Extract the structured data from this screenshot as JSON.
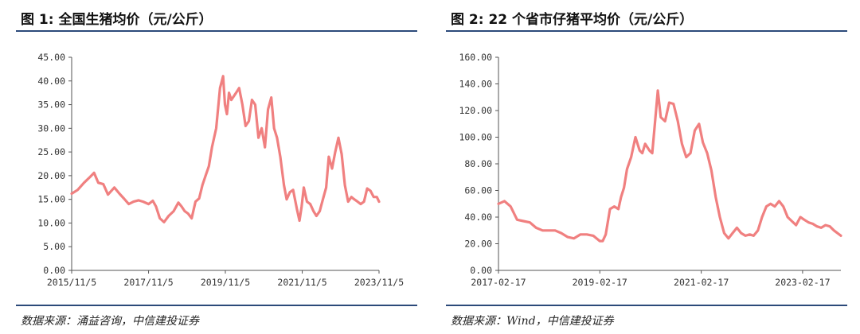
{
  "chart_data": [
    {
      "type": "line",
      "title": "图 1: 全国生猪均价（元/公斤）",
      "source": "数据来源：涌益咨询，中信建投证券",
      "color": "#f08080",
      "ylim": [
        0,
        45
      ],
      "yticks": [
        "45.00",
        "40.00",
        "35.00",
        "30.00",
        "25.00",
        "20.00",
        "15.00",
        "10.00",
        "5.00",
        "0.00"
      ],
      "ytick_values": [
        45,
        40,
        35,
        30,
        25,
        20,
        15,
        10,
        5,
        0
      ],
      "xlim": [
        "2015-11-05",
        "2023-11-05"
      ],
      "xticks": [
        "2015/11/5",
        "2017/11/5",
        "2019/11/5",
        "2021/11/5",
        "2023/11/5"
      ],
      "xtick_values": [
        "2015-11-05",
        "2017-11-05",
        "2019-11-05",
        "2021-11-05",
        "2023-11-05"
      ],
      "series": [
        {
          "x": [
            "2015-11-05",
            "2016-01-01",
            "2016-03-01",
            "2016-05-01",
            "2016-06-05",
            "2016-07-15",
            "2016-09-01",
            "2016-10-15",
            "2016-12-15",
            "2017-02-01",
            "2017-03-15",
            "2017-05-01",
            "2017-06-15",
            "2017-08-01",
            "2017-09-15",
            "2017-11-05",
            "2017-12-15",
            "2018-01-15",
            "2018-02-20",
            "2018-04-01",
            "2018-05-15",
            "2018-07-01",
            "2018-08-15",
            "2018-09-15",
            "2018-10-15",
            "2018-11-15",
            "2018-12-20",
            "2019-01-25",
            "2019-03-01",
            "2019-04-01",
            "2019-05-01",
            "2019-06-01",
            "2019-07-01",
            "2019-08-10",
            "2019-09-15",
            "2019-10-15",
            "2019-11-01",
            "2019-11-20",
            "2019-12-10",
            "2020-01-01",
            "2020-02-15",
            "2020-03-15",
            "2020-04-15",
            "2020-05-15",
            "2020-06-15",
            "2020-07-15",
            "2020-08-15",
            "2020-09-15",
            "2020-10-15",
            "2020-11-15",
            "2020-12-15",
            "2021-01-15",
            "2021-02-10",
            "2021-03-10",
            "2021-04-10",
            "2021-05-15",
            "2021-06-10",
            "2021-07-10",
            "2021-08-10",
            "2021-09-15",
            "2021-10-10",
            "2021-10-30",
            "2021-11-20",
            "2021-12-20",
            "2022-01-20",
            "2022-02-20",
            "2022-03-20",
            "2022-04-20",
            "2022-05-20",
            "2022-06-20",
            "2022-07-15",
            "2022-08-15",
            "2022-09-15",
            "2022-10-15",
            "2022-11-15",
            "2022-12-15",
            "2023-01-15",
            "2023-02-15",
            "2023-03-15",
            "2023-04-15",
            "2023-05-15",
            "2023-06-15",
            "2023-07-15",
            "2023-08-15",
            "2023-09-15",
            "2023-10-15",
            "2023-11-05"
          ],
          "y": [
            16.2,
            17.0,
            18.5,
            19.8,
            20.6,
            18.5,
            18.2,
            16.0,
            17.5,
            16.2,
            15.2,
            14.0,
            14.5,
            14.8,
            14.5,
            14.0,
            14.7,
            13.5,
            11.0,
            10.2,
            11.5,
            12.5,
            14.3,
            13.5,
            12.5,
            12.0,
            11.0,
            14.5,
            15.2,
            18.0,
            20.0,
            22.0,
            26.0,
            30.0,
            38.5,
            41.0,
            35.0,
            33.0,
            37.5,
            36.0,
            37.5,
            38.5,
            35.0,
            30.5,
            31.5,
            36.0,
            35.0,
            28.0,
            30.0,
            26.0,
            34.0,
            36.5,
            30.0,
            28.0,
            24.0,
            18.0,
            15.0,
            16.5,
            17.0,
            13.0,
            10.5,
            13.5,
            17.5,
            14.5,
            14.0,
            12.5,
            11.5,
            12.5,
            15.0,
            17.5,
            24.0,
            21.5,
            25.0,
            28.0,
            24.5,
            18.0,
            14.5,
            15.5,
            15.0,
            14.5,
            14.0,
            14.5,
            17.3,
            16.8,
            15.5,
            15.5,
            14.5
          ]
        }
      ]
    },
    {
      "type": "line",
      "title": "图 2: 22 个省市仔猪平均价（元/公斤）",
      "source": "数据来源：Wind，中信建投证券",
      "color": "#f08080",
      "ylim": [
        0,
        160
      ],
      "yticks": [
        "160.00",
        "140.00",
        "120.00",
        "100.00",
        "80.00",
        "60.00",
        "40.00",
        "20.00",
        "0.00"
      ],
      "ytick_values": [
        160,
        140,
        120,
        100,
        80,
        60,
        40,
        20,
        0
      ],
      "xlim": [
        "2017-02-17",
        "2023-11-20"
      ],
      "xticks": [
        "2017-02-17",
        "2019-02-17",
        "2021-02-17",
        "2023-02-17"
      ],
      "xtick_values": [
        "2017-02-17",
        "2019-02-17",
        "2021-02-17",
        "2023-02-17"
      ],
      "series": [
        {
          "x": [
            "2017-02-17",
            "2017-04-01",
            "2017-05-15",
            "2017-07-01",
            "2017-08-15",
            "2017-10-01",
            "2017-11-15",
            "2018-01-01",
            "2018-02-15",
            "2018-04-01",
            "2018-05-15",
            "2018-07-01",
            "2018-08-15",
            "2018-10-01",
            "2018-11-15",
            "2019-01-01",
            "2019-02-17",
            "2019-03-10",
            "2019-04-01",
            "2019-05-01",
            "2019-06-01",
            "2019-07-01",
            "2019-07-20",
            "2019-08-10",
            "2019-09-01",
            "2019-10-01",
            "2019-11-01",
            "2019-12-01",
            "2019-12-20",
            "2020-01-10",
            "2020-02-10",
            "2020-03-01",
            "2020-03-20",
            "2020-04-10",
            "2020-05-01",
            "2020-06-01",
            "2020-07-01",
            "2020-08-01",
            "2020-09-01",
            "2020-10-01",
            "2020-11-01",
            "2020-12-01",
            "2021-01-01",
            "2021-02-01",
            "2021-03-01",
            "2021-04-01",
            "2021-05-01",
            "2021-06-01",
            "2021-07-01",
            "2021-08-01",
            "2021-09-01",
            "2021-10-01",
            "2021-11-01",
            "2021-12-01",
            "2022-01-01",
            "2022-02-01",
            "2022-03-01",
            "2022-04-01",
            "2022-05-01",
            "2022-06-01",
            "2022-07-01",
            "2022-08-01",
            "2022-09-01",
            "2022-10-01",
            "2022-11-01",
            "2022-12-01",
            "2023-01-01",
            "2023-02-01",
            "2023-03-01",
            "2023-04-01",
            "2023-05-01",
            "2023-06-01",
            "2023-07-01",
            "2023-08-01",
            "2023-09-01",
            "2023-10-01",
            "2023-11-20"
          ],
          "y": [
            50,
            52,
            48,
            38,
            37,
            36,
            32,
            30,
            30,
            30,
            28,
            25,
            24,
            27,
            27,
            26,
            22,
            22,
            27,
            46,
            48,
            46,
            55,
            62,
            76,
            85,
            100,
            90,
            88,
            95,
            90,
            88,
            110,
            135,
            115,
            112,
            126,
            125,
            112,
            95,
            85,
            88,
            105,
            110,
            96,
            88,
            75,
            55,
            40,
            28,
            24,
            28,
            32,
            28,
            26,
            27,
            26,
            30,
            40,
            48,
            50,
            48,
            52,
            48,
            40,
            37,
            34,
            40,
            38,
            36,
            35,
            33,
            32,
            34,
            33,
            30,
            26
          ]
        }
      ]
    }
  ]
}
